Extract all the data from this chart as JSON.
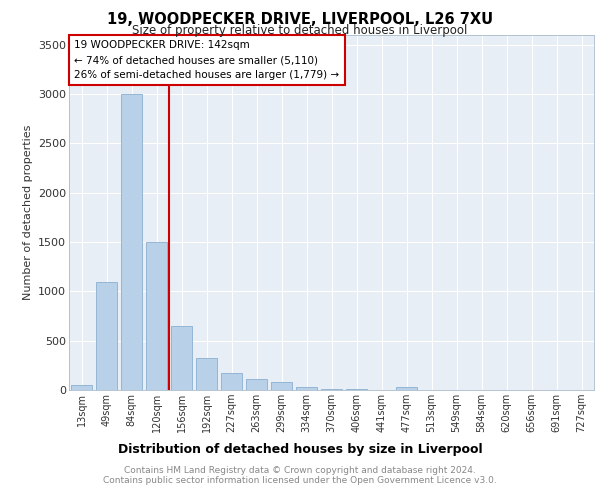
{
  "title": "19, WOODPECKER DRIVE, LIVERPOOL, L26 7XU",
  "subtitle": "Size of property relative to detached houses in Liverpool",
  "xlabel": "Distribution of detached houses by size in Liverpool",
  "ylabel": "Number of detached properties",
  "categories": [
    "13sqm",
    "49sqm",
    "84sqm",
    "120sqm",
    "156sqm",
    "192sqm",
    "227sqm",
    "263sqm",
    "299sqm",
    "334sqm",
    "370sqm",
    "406sqm",
    "441sqm",
    "477sqm",
    "513sqm",
    "549sqm",
    "584sqm",
    "620sqm",
    "656sqm",
    "691sqm",
    "727sqm"
  ],
  "values": [
    50,
    1100,
    3000,
    1500,
    650,
    320,
    175,
    110,
    85,
    30,
    15,
    10,
    5,
    30,
    0,
    0,
    0,
    0,
    0,
    0,
    0
  ],
  "bar_color": "#b8d0e8",
  "bar_edge_color": "#8aafd0",
  "marker_line_color": "#cc0000",
  "annotation_title": "19 WOODPECKER DRIVE: 142sqm",
  "annotation_line1": "← 74% of detached houses are smaller (5,110)",
  "annotation_line2": "26% of semi-detached houses are larger (1,779) →",
  "annotation_box_color": "#cc0000",
  "ylim": [
    0,
    3600
  ],
  "yticks": [
    0,
    500,
    1000,
    1500,
    2000,
    2500,
    3000,
    3500
  ],
  "footer_line1": "Contains HM Land Registry data © Crown copyright and database right 2024.",
  "footer_line2": "Contains public sector information licensed under the Open Government Licence v3.0.",
  "plot_bg_color": "#e8eef5"
}
